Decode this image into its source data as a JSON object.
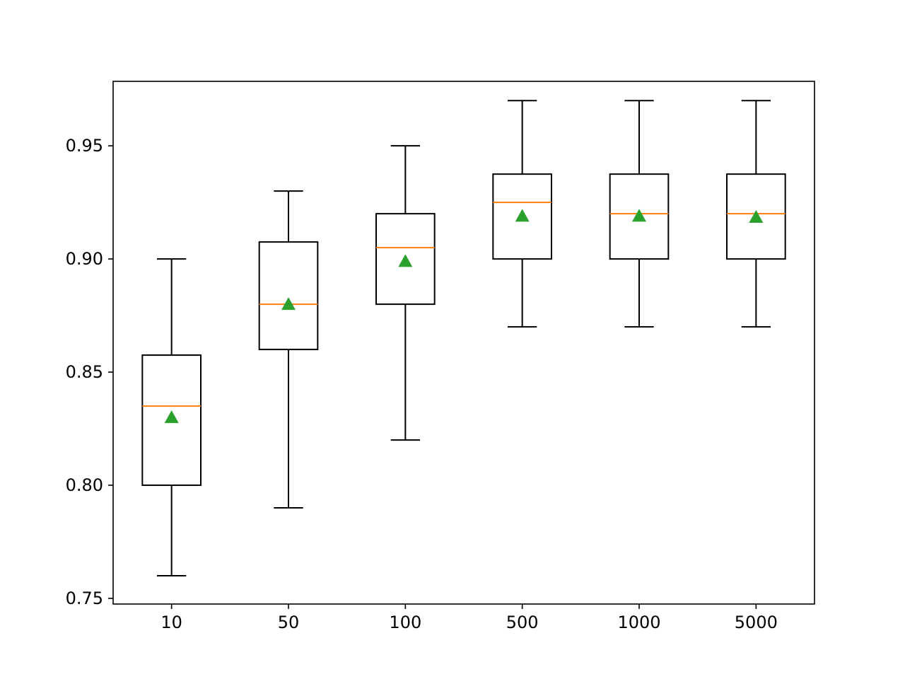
{
  "chart_data": {
    "type": "box",
    "title": "",
    "xlabel": "",
    "ylabel": "",
    "categories": [
      "10",
      "50",
      "100",
      "500",
      "1000",
      "5000"
    ],
    "boxes": [
      {
        "whisker_low": 0.76,
        "q1": 0.8,
        "median": 0.835,
        "q3": 0.8575,
        "whisker_high": 0.9,
        "mean": 0.83
      },
      {
        "whisker_low": 0.79,
        "q1": 0.86,
        "median": 0.88,
        "q3": 0.9075,
        "whisker_high": 0.93,
        "mean": 0.88
      },
      {
        "whisker_low": 0.82,
        "q1": 0.88,
        "median": 0.905,
        "q3": 0.92,
        "whisker_high": 0.95,
        "mean": 0.899
      },
      {
        "whisker_low": 0.87,
        "q1": 0.9,
        "median": 0.925,
        "q3": 0.9375,
        "whisker_high": 0.97,
        "mean": 0.919
      },
      {
        "whisker_low": 0.87,
        "q1": 0.9,
        "median": 0.92,
        "q3": 0.9375,
        "whisker_high": 0.97,
        "mean": 0.919
      },
      {
        "whisker_low": 0.87,
        "q1": 0.9,
        "median": 0.92,
        "q3": 0.9375,
        "whisker_high": 0.97,
        "mean": 0.9185
      }
    ],
    "ylim": [
      0.7475,
      0.9785
    ],
    "yticks": [
      0.75,
      0.8,
      0.85,
      0.9,
      0.95
    ],
    "ytick_labels": [
      "0.75",
      "0.80",
      "0.85",
      "0.90",
      "0.95"
    ],
    "grid": false,
    "legend": "none",
    "colors": {
      "box": "#000000",
      "median": "#ff7f0e",
      "mean": "#2ca02c"
    }
  }
}
